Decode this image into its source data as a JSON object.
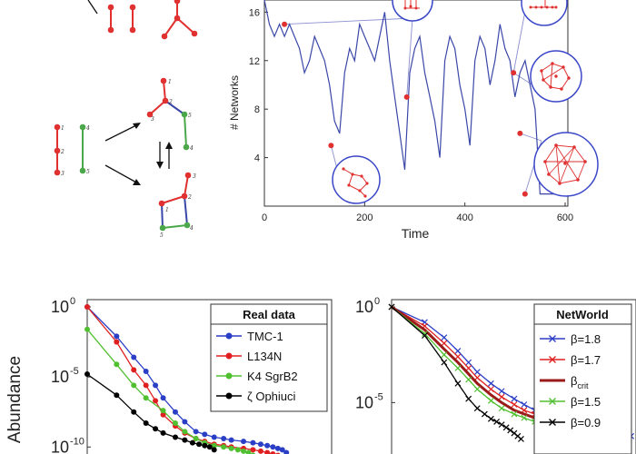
{
  "colors": {
    "network_node": "#e03030",
    "blue_edge": "#3a47a8",
    "green_edge": "#4aa84a",
    "ts_line": "#3a47a8",
    "bubble_outline": "#3a47c8",
    "tmc1": "#2b3fc6",
    "l134n": "#e02020",
    "k4": "#50c030",
    "zeta": "#000000",
    "crit": "#9b1a1a"
  },
  "diagram": {
    "node_labels": [
      "1",
      "2",
      "3",
      "4",
      "5",
      "1",
      "2",
      "3",
      "4",
      "5",
      "1",
      "2",
      "3",
      "4",
      "5"
    ]
  },
  "chart_data": [
    {
      "type": "line",
      "xlabel": "Time",
      "ylabel": "# Networks",
      "xlim": [
        0,
        600
      ],
      "ylim": [
        0,
        17
      ],
      "xticks": [
        "0",
        "200",
        "400",
        "600"
      ],
      "yticks": [
        "4",
        "8",
        "12",
        "16"
      ],
      "series": [
        {
          "x": [
            0,
            10,
            20,
            30,
            40,
            50,
            60,
            70,
            80,
            90,
            100,
            110,
            120,
            130,
            140,
            150,
            160,
            170,
            180,
            190,
            200,
            210,
            220,
            230,
            240,
            250,
            260,
            270,
            280,
            290,
            300,
            310,
            320,
            330,
            340,
            350,
            360,
            370,
            380,
            390,
            400,
            410,
            420,
            430,
            440,
            450,
            460,
            470,
            480,
            490,
            500,
            510,
            520,
            530,
            540,
            550,
            560,
            570,
            580,
            590,
            600
          ],
          "y": [
            17,
            15,
            14,
            15,
            14,
            15,
            14,
            13,
            11,
            12,
            14,
            13,
            12,
            10,
            7,
            6,
            11,
            13,
            12,
            15,
            14,
            13,
            12,
            14,
            16,
            12,
            9,
            6,
            3,
            11,
            13,
            14,
            11,
            9,
            7,
            4,
            12,
            14,
            13,
            10,
            8,
            5,
            12,
            14,
            13,
            10,
            12,
            15,
            13,
            12,
            9,
            11,
            12,
            10,
            8,
            1,
            1,
            1,
            1,
            1,
            1
          ]
        }
      ],
      "highlight_points": [
        {
          "x": 40,
          "y": 15
        },
        {
          "x": 133,
          "y": 5
        },
        {
          "x": 284,
          "y": 9
        },
        {
          "x": 497,
          "y": 11
        },
        {
          "x": 510,
          "y": 6
        },
        {
          "x": 520,
          "y": 1
        }
      ]
    },
    {
      "type": "line",
      "ylabel": "Abundance",
      "log_y": true,
      "yticks": [
        "10",
        "10",
        "10"
      ],
      "yticks_exp": [
        "0",
        "-5",
        "-10"
      ],
      "legend_title": "Real data",
      "legend_position": "top-right",
      "series": [
        {
          "name": "TMC-1",
          "x": [
            1,
            2,
            3,
            4,
            5,
            6,
            8,
            10,
            13,
            16,
            20,
            25,
            30,
            40,
            50,
            60,
            70,
            80,
            90,
            100,
            110
          ],
          "y": [
            0,
            -2.1,
            -3.6,
            -4.6,
            -5.6,
            -6.5,
            -7.5,
            -8.2,
            -8.9,
            -9.1,
            -9.3,
            -9.4,
            -9.5,
            -9.6,
            -9.7,
            -9.8,
            -9.9,
            -10.0,
            -10.1,
            -10.2,
            -10.4
          ]
        },
        {
          "name": "L134N",
          "x": [
            1,
            2,
            3,
            4,
            5,
            6,
            8,
            10,
            13,
            16,
            20,
            25,
            30,
            40,
            50,
            60,
            70,
            80,
            90,
            100
          ],
          "y": [
            0,
            -2.5,
            -4.5,
            -5.6,
            -6.7,
            -7.7,
            -8.5,
            -9.0,
            -9.4,
            -9.6,
            -9.8,
            -9.9,
            -10.0,
            -10.1,
            -10.2,
            -10.3,
            -10.4,
            -10.5,
            -10.6,
            -10.7
          ]
        },
        {
          "name": "K4 SgrB2",
          "x": [
            1,
            2,
            3,
            4,
            6,
            8,
            10,
            13,
            16,
            20,
            25,
            30,
            35,
            40,
            45,
            50
          ],
          "y": [
            -1.6,
            -4.1,
            -5.6,
            -6.5,
            -7.4,
            -8.3,
            -8.9,
            -9.4,
            -9.7,
            -9.9,
            -10.0,
            -10.1,
            -10.2,
            -10.3,
            -10.4,
            -10.6
          ]
        },
        {
          "name": "ζ Ophiuci",
          "x": [
            1,
            2,
            3,
            4,
            5,
            6,
            8,
            10,
            12,
            14,
            16,
            18,
            20
          ],
          "y": [
            -4.8,
            -6.3,
            -7.5,
            -8.3,
            -8.7,
            -9.0,
            -9.3,
            -9.5,
            -9.7,
            -9.8,
            -9.9,
            -10.0,
            -10.2
          ]
        }
      ]
    },
    {
      "type": "line",
      "log_y": true,
      "yticks": [
        "10",
        "10"
      ],
      "yticks_exp": [
        "0",
        "-5"
      ],
      "legend_title": "NetWorld",
      "legend_position": "top-right",
      "series": [
        {
          "name": "β=1.8",
          "x": [
            1,
            2,
            3,
            4,
            5,
            6,
            8,
            10,
            13,
            16,
            20,
            25,
            30,
            40,
            50,
            60,
            70,
            80,
            90,
            100,
            110,
            120,
            130,
            140,
            150
          ],
          "y": [
            0,
            -0.8,
            -1.6,
            -2.3,
            -2.9,
            -3.4,
            -4.0,
            -4.4,
            -4.8,
            -5.1,
            -5.4,
            -5.6,
            -5.8,
            -6.0,
            -6.1,
            -6.2,
            -6.3,
            -6.4,
            -6.45,
            -6.5,
            -6.55,
            -6.6,
            -6.65,
            -6.7,
            -6.75
          ]
        },
        {
          "name": "β=1.7",
          "x": [
            1,
            2,
            3,
            4,
            5,
            6,
            8,
            10,
            13,
            16,
            20,
            25,
            30,
            40,
            50,
            60,
            70,
            80,
            90,
            100,
            110
          ],
          "y": [
            0,
            -1.0,
            -1.9,
            -2.6,
            -3.2,
            -3.7,
            -4.3,
            -4.7,
            -5.1,
            -5.4,
            -5.6,
            -5.8,
            -6.0,
            -6.2,
            -6.35,
            -6.5,
            -6.6,
            -6.65,
            -6.7,
            -6.75,
            -6.8
          ]
        },
        {
          "name": "β",
          "name_sub": "crit",
          "x": [
            1,
            2,
            3,
            4,
            5,
            6,
            8,
            10,
            13,
            16,
            20,
            25,
            30,
            40,
            50,
            60,
            70,
            80,
            90
          ],
          "y": [
            0,
            -1.2,
            -2.2,
            -2.9,
            -3.5,
            -4.0,
            -4.6,
            -5.0,
            -5.4,
            -5.6,
            -5.8,
            -6.0,
            -6.2,
            -6.4,
            -6.55,
            -6.65,
            -6.75,
            -6.8,
            -6.85
          ]
        },
        {
          "name": "β=1.5",
          "x": [
            1,
            2,
            3,
            4,
            5,
            6,
            8,
            10,
            13,
            16,
            20,
            25,
            30,
            40,
            50,
            60,
            70
          ],
          "y": [
            0,
            -1.4,
            -2.5,
            -3.2,
            -3.8,
            -4.3,
            -4.9,
            -5.3,
            -5.6,
            -5.8,
            -6.0,
            -6.2,
            -6.4,
            -6.55,
            -6.65,
            -6.75,
            -6.85
          ]
        },
        {
          "name": "β=0.9",
          "x": [
            1,
            2,
            3,
            4,
            5,
            6,
            7,
            8,
            9,
            10,
            11,
            12,
            13,
            14,
            15
          ],
          "y": [
            0,
            -1.5,
            -2.9,
            -4.0,
            -4.8,
            -5.3,
            -5.6,
            -5.85,
            -6.0,
            -6.15,
            -6.3,
            -6.45,
            -6.6,
            -6.75,
            -6.9
          ]
        }
      ]
    }
  ]
}
